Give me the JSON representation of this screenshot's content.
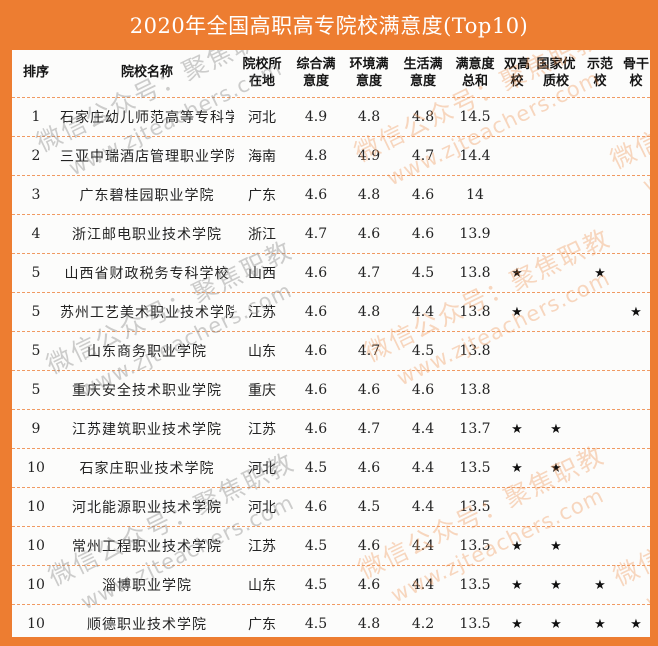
{
  "chart_data": {
    "type": "table",
    "title": "2020年全国高职高专院校满意度(Top10)",
    "columns": [
      {
        "label": "排序",
        "line1": "排序",
        "line2": ""
      },
      {
        "label": "院校名称",
        "line1": "院校名称",
        "line2": ""
      },
      {
        "label": "院校所在地",
        "line1": "院校所",
        "line2": "在地"
      },
      {
        "label": "综合满意度",
        "line1": "综合满",
        "line2": "意度"
      },
      {
        "label": "环境满意度",
        "line1": "环境满",
        "line2": "意度"
      },
      {
        "label": "生活满意度",
        "line1": "生活满",
        "line2": "意度"
      },
      {
        "label": "满意度总和",
        "line1": "满意度",
        "line2": "总和"
      },
      {
        "label": "双高校",
        "line1": "双高",
        "line2": "校"
      },
      {
        "label": "国家优质校",
        "line1": "国家优",
        "line2": "质校"
      },
      {
        "label": "示范校",
        "line1": "示范",
        "line2": "校"
      },
      {
        "label": "骨干校",
        "line1": "骨干",
        "line2": "校"
      }
    ],
    "rows": [
      {
        "rank": "1",
        "name": "石家庄幼儿师范高等专科学校",
        "province": "河北",
        "comprehensive": "4.9",
        "environment": "4.8",
        "life": "4.8",
        "total": "14.5",
        "double_high": "",
        "national_quality": "",
        "model": "",
        "backbone": ""
      },
      {
        "rank": "2",
        "name": "三亚中瑞酒店管理职业学院",
        "province": "海南",
        "comprehensive": "4.8",
        "environment": "4.9",
        "life": "4.7",
        "total": "14.4",
        "double_high": "",
        "national_quality": "",
        "model": "",
        "backbone": ""
      },
      {
        "rank": "3",
        "name": "广东碧桂园职业学院",
        "province": "广东",
        "comprehensive": "4.6",
        "environment": "4.8",
        "life": "4.6",
        "total": "14",
        "double_high": "",
        "national_quality": "",
        "model": "",
        "backbone": ""
      },
      {
        "rank": "4",
        "name": "浙江邮电职业技术学院",
        "province": "浙江",
        "comprehensive": "4.7",
        "environment": "4.6",
        "life": "4.6",
        "total": "13.9",
        "double_high": "",
        "national_quality": "",
        "model": "",
        "backbone": ""
      },
      {
        "rank": "5",
        "name": "山西省财政税务专科学校",
        "province": "山西",
        "comprehensive": "4.6",
        "environment": "4.7",
        "life": "4.5",
        "total": "13.8",
        "double_high": "★",
        "national_quality": "",
        "model": "★",
        "backbone": ""
      },
      {
        "rank": "5",
        "name": "苏州工艺美术职业技术学院",
        "province": "江苏",
        "comprehensive": "4.6",
        "environment": "4.8",
        "life": "4.4",
        "total": "13.8",
        "double_high": "★",
        "national_quality": "",
        "model": "",
        "backbone": "★"
      },
      {
        "rank": "5",
        "name": "山东商务职业学院",
        "province": "山东",
        "comprehensive": "4.6",
        "environment": "4.7",
        "life": "4.5",
        "total": "13.8",
        "double_high": "",
        "national_quality": "",
        "model": "",
        "backbone": ""
      },
      {
        "rank": "5",
        "name": "重庆安全技术职业学院",
        "province": "重庆",
        "comprehensive": "4.6",
        "environment": "4.6",
        "life": "4.6",
        "total": "13.8",
        "double_high": "",
        "national_quality": "",
        "model": "",
        "backbone": ""
      },
      {
        "rank": "9",
        "name": "江苏建筑职业技术学院",
        "province": "江苏",
        "comprehensive": "4.6",
        "environment": "4.7",
        "life": "4.4",
        "total": "13.7",
        "double_high": "★",
        "national_quality": "★",
        "model": "",
        "backbone": ""
      },
      {
        "rank": "10",
        "name": "石家庄职业技术学院",
        "province": "河北",
        "comprehensive": "4.5",
        "environment": "4.6",
        "life": "4.4",
        "total": "13.5",
        "double_high": "★",
        "national_quality": "★",
        "model": "",
        "backbone": ""
      },
      {
        "rank": "10",
        "name": "河北能源职业技术学院",
        "province": "河北",
        "comprehensive": "4.6",
        "environment": "4.5",
        "life": "4.4",
        "total": "13.5",
        "double_high": "",
        "national_quality": "",
        "model": "",
        "backbone": ""
      },
      {
        "rank": "10",
        "name": "常州工程职业技术学院",
        "province": "江苏",
        "comprehensive": "4.5",
        "environment": "4.6",
        "life": "4.4",
        "total": "13.5",
        "double_high": "★",
        "national_quality": "★",
        "model": "",
        "backbone": ""
      },
      {
        "rank": "10",
        "name": "淄博职业学院",
        "province": "山东",
        "comprehensive": "4.5",
        "environment": "4.6",
        "life": "4.4",
        "total": "13.5",
        "double_high": "★",
        "national_quality": "★",
        "model": "★",
        "backbone": ""
      },
      {
        "rank": "10",
        "name": "顺德职业技术学院",
        "province": "广东",
        "comprehensive": "4.5",
        "environment": "4.8",
        "life": "4.2",
        "total": "13.5",
        "double_high": "★",
        "national_quality": "★",
        "model": "★",
        "backbone": "★"
      }
    ]
  },
  "star_glyph": "★",
  "colors": {
    "accent": "#ED7D31",
    "divider": "#F09A62",
    "title_text": "#FFFFFF",
    "body_text": "#232323"
  },
  "watermark": {
    "line1": "微信公众号：聚焦职教",
    "line2": "www.zjteachers.com"
  }
}
